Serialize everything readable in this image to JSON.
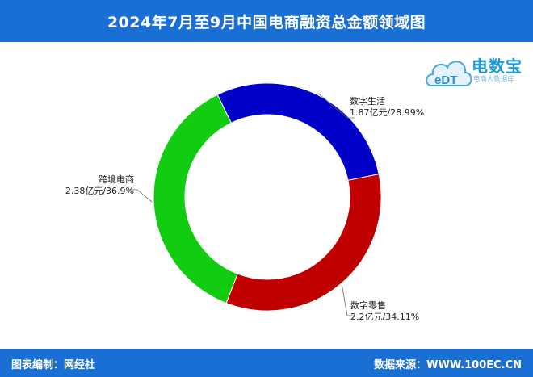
{
  "header": {
    "title": "2024年7月至9月中国电商融资总金额领域图"
  },
  "logo": {
    "icon": "cloud-edt-logo",
    "brand": "电数宝",
    "subtitle": "电商大数据库",
    "mark": "eDT"
  },
  "footer": {
    "left": "图表编制：网经社",
    "right": "数据来源：WWW.100EC.CN"
  },
  "colors": {
    "header": "#1a6fd4",
    "blue": "#0000c8",
    "red": "#c00000",
    "green": "#11cc11"
  },
  "chart_data": {
    "type": "pie",
    "variant": "donut",
    "title": "2024年7月至9月中国电商融资总金额领域图",
    "unit": "亿元",
    "slices": [
      {
        "name": "数字生活",
        "value": 1.87,
        "percent": 28.99,
        "color": "#0000c8",
        "label_line1": "数字生活",
        "label_line2": "1.87亿元/28.99%"
      },
      {
        "name": "数字零售",
        "value": 2.2,
        "percent": 34.11,
        "color": "#c00000",
        "label_line1": "数字零售",
        "label_line2": "2.2亿元/34.11%"
      },
      {
        "name": "跨境电商",
        "value": 2.38,
        "percent": 36.9,
        "color": "#11cc11",
        "label_line1": "跨境电商",
        "label_line2": "2.38亿元/36.9%"
      }
    ]
  }
}
